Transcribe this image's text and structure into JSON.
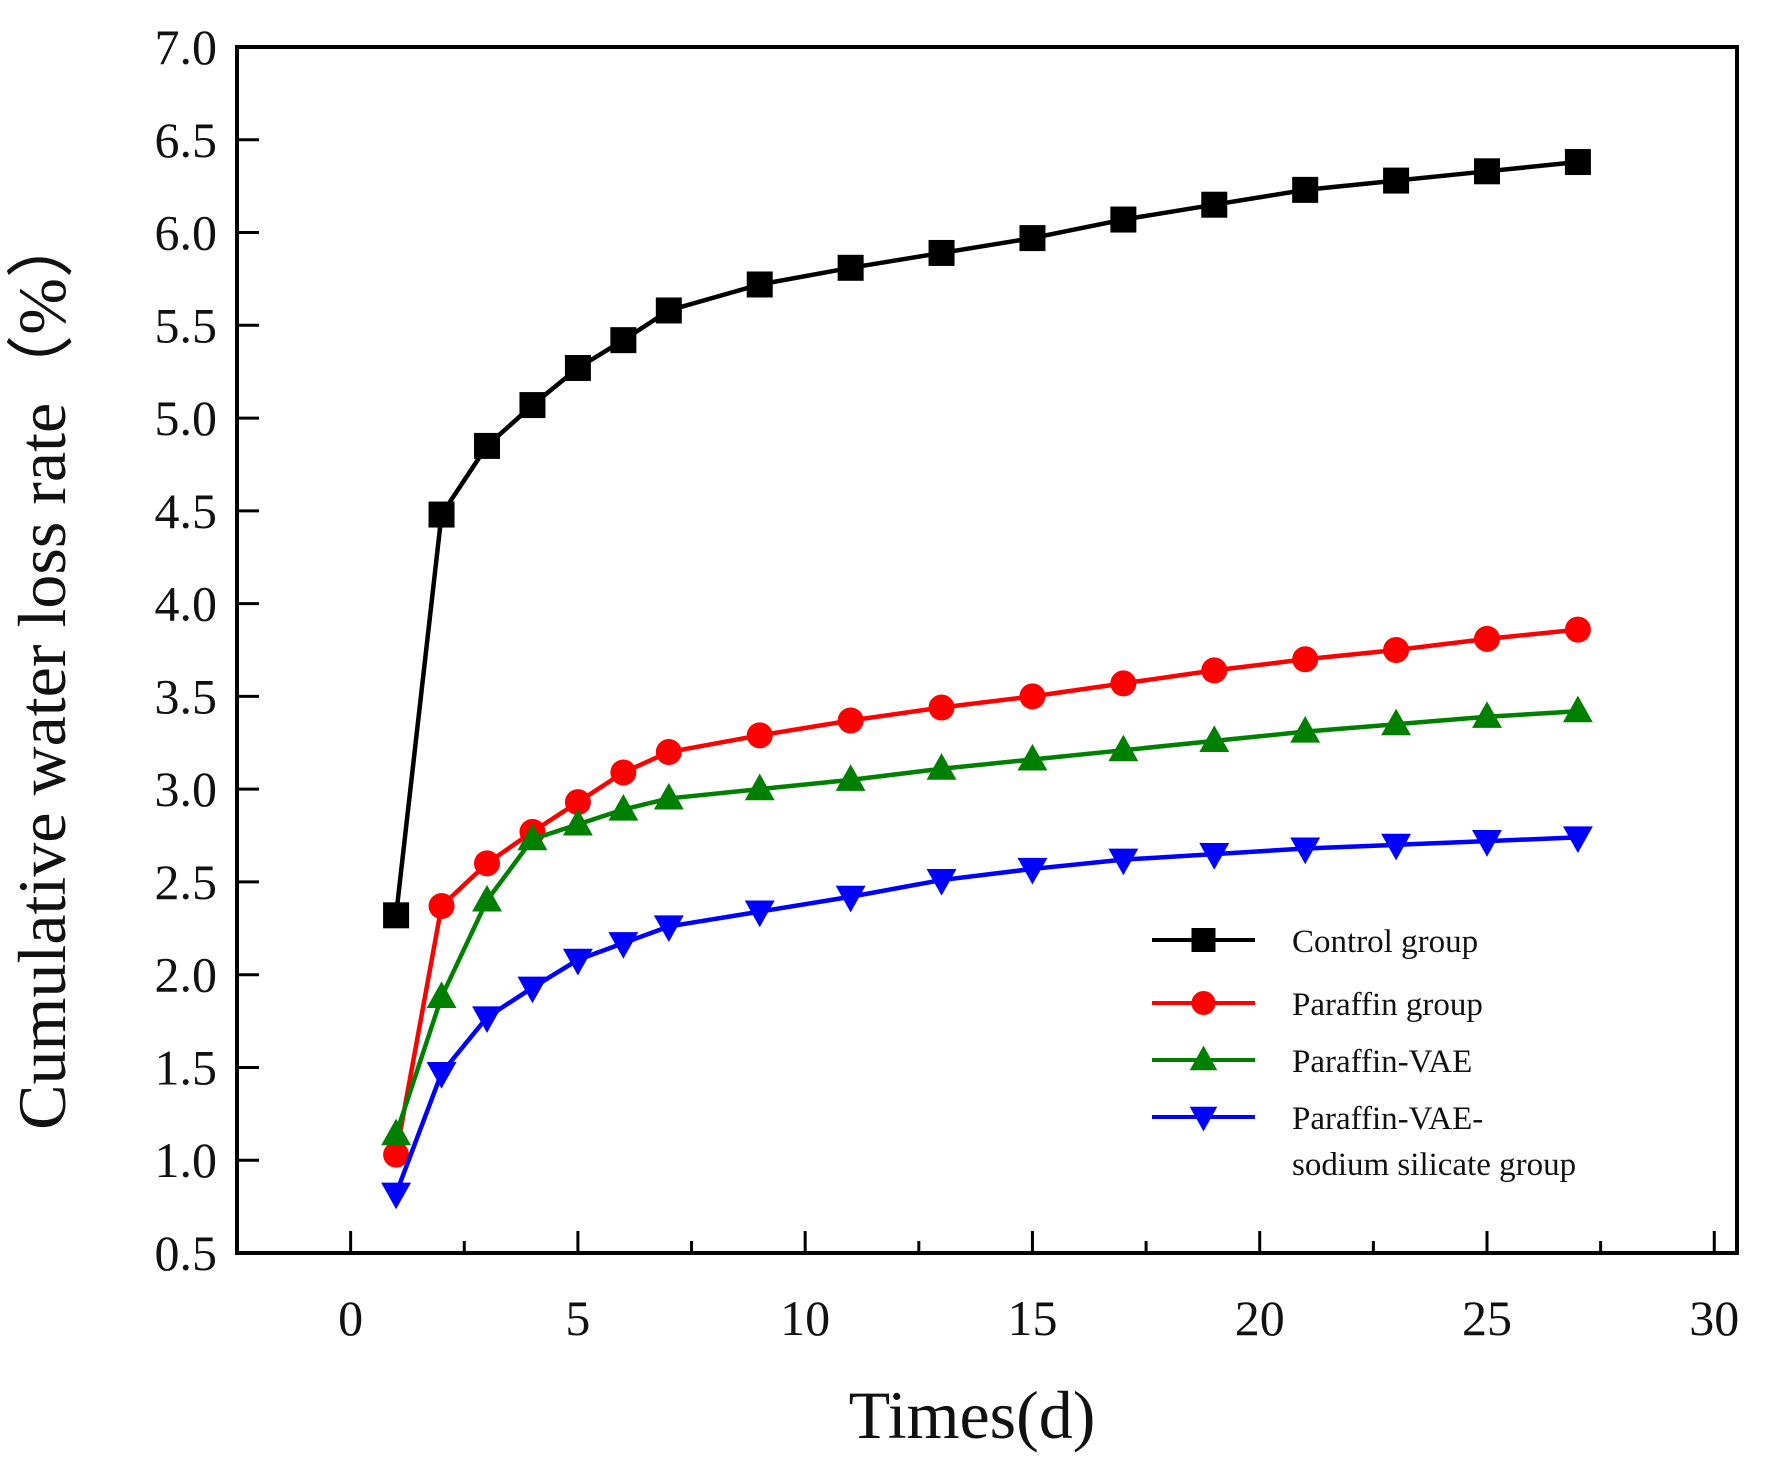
{
  "chart_data": {
    "type": "line",
    "title": "",
    "xlabel": "Times(d)",
    "ylabel": "Cumulative water loss rate（%）",
    "xlim": [
      -2.5,
      30.5
    ],
    "ylim": [
      0.5,
      7.0
    ],
    "xticks": [
      0,
      5,
      10,
      15,
      20,
      25,
      30
    ],
    "yticks": [
      0.5,
      1.0,
      1.5,
      2.0,
      2.5,
      3.0,
      3.5,
      4.0,
      4.5,
      5.0,
      5.5,
      6.0,
      6.5,
      7.0
    ],
    "xtick_labels": [
      "0",
      "5",
      "10",
      "15",
      "20",
      "25",
      "30"
    ],
    "ytick_labels": [
      "0.5",
      "1.0",
      "1.5",
      "2.0",
      "2.5",
      "3.0",
      "3.5",
      "4.0",
      "4.5",
      "5.0",
      "5.5",
      "6.0",
      "6.5",
      "7.0"
    ],
    "grid": false,
    "legend_position": "bottom-right",
    "x": [
      1,
      2,
      3,
      4,
      5,
      6,
      7,
      9,
      11,
      13,
      15,
      17,
      19,
      21,
      23,
      25,
      27
    ],
    "series": [
      {
        "name": "Control group",
        "legend_lines": [
          "Control group"
        ],
        "color": "#000000",
        "marker": "square",
        "values": [
          2.32,
          4.48,
          4.85,
          5.07,
          5.27,
          5.42,
          5.58,
          5.72,
          5.81,
          5.89,
          5.97,
          6.07,
          6.15,
          6.23,
          6.28,
          6.33,
          6.38
        ]
      },
      {
        "name": "Paraffin group",
        "legend_lines": [
          "Paraffin group"
        ],
        "color": "#ff0000",
        "marker": "circle",
        "values": [
          1.03,
          2.37,
          2.6,
          2.77,
          2.93,
          3.09,
          3.2,
          3.29,
          3.37,
          3.44,
          3.5,
          3.57,
          3.64,
          3.7,
          3.75,
          3.81,
          3.86
        ]
      },
      {
        "name": "Paraffin-VAE",
        "legend_lines": [
          "Paraffin-VAE"
        ],
        "color": "#008000",
        "marker": "triangle-up",
        "values": [
          1.14,
          1.88,
          2.4,
          2.73,
          2.81,
          2.89,
          2.95,
          3.0,
          3.05,
          3.11,
          3.16,
          3.21,
          3.26,
          3.31,
          3.35,
          3.39,
          3.42
        ]
      },
      {
        "name": "Paraffin-VAE-sodium silicate group",
        "legend_lines": [
          "Paraffin-VAE-",
          "sodium silicate group"
        ],
        "color": "#0000ff",
        "marker": "triangle-down",
        "values": [
          0.82,
          1.47,
          1.77,
          1.93,
          2.08,
          2.17,
          2.26,
          2.34,
          2.42,
          2.51,
          2.57,
          2.62,
          2.65,
          2.68,
          2.7,
          2.72,
          2.74
        ]
      }
    ]
  }
}
